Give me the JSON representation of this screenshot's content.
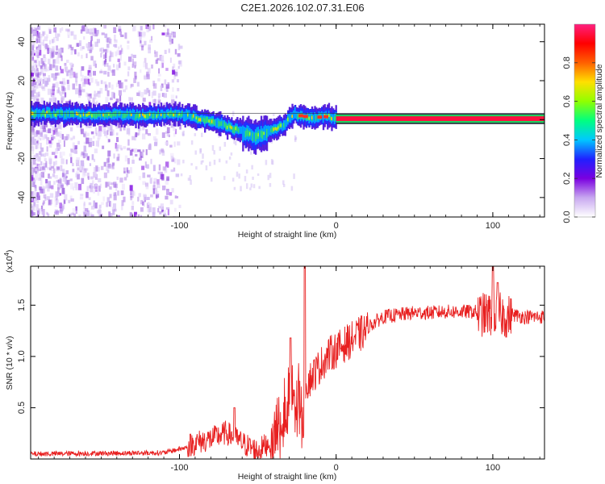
{
  "title": "C2E1.2026.102.07.31.E06",
  "chart_data": [
    {
      "type": "heatmap",
      "name": "spectrogram",
      "xlabel": "Height of straight line (km)",
      "ylabel": "Frequency (Hz)",
      "xlim": [
        -195,
        133
      ],
      "ylim": [
        -50,
        49
      ],
      "xticks": [
        -100,
        0,
        100
      ],
      "xtick_labels": [
        "-100",
        "0",
        "100"
      ],
      "yticks": [
        -40,
        -20,
        0,
        20,
        40
      ],
      "ytick_labels": [
        "-40",
        "-20",
        "0",
        "20",
        "40"
      ],
      "colorbar": {
        "label": "Normalized spectral amplitude",
        "range": [
          0,
          1
        ],
        "ticks": [
          0.0,
          0.2,
          0.4,
          0.6,
          0.8
        ],
        "tick_labels": [
          "0.0",
          "0.2",
          "0.4",
          "0.6",
          "0.8"
        ],
        "stops": [
          "#ffffff",
          "#c8a8f0",
          "#7a00e0",
          "#2020ff",
          "#00c8ff",
          "#00ff80",
          "#90ff00",
          "#ffe000",
          "#ff6000",
          "#ff0000",
          "#ff2080"
        ]
      },
      "ridge": {
        "x": [
          -195,
          -180,
          -160,
          -140,
          -120,
          -105,
          -95,
          -85,
          -75,
          -65,
          -58,
          -52,
          -46,
          -40,
          -34,
          -30,
          -27,
          -24,
          -20,
          -15,
          -10,
          -5,
          0,
          20,
          60,
          100,
          133
        ],
        "y": [
          3,
          3,
          2.5,
          2.5,
          2,
          3,
          2,
          0,
          -2,
          -5,
          -7,
          -9,
          -7,
          -5,
          -3,
          1,
          3,
          2,
          1.5,
          1,
          1.5,
          1.5,
          0.5,
          0.5,
          0.5,
          0.5,
          0.5
        ]
      }
    },
    {
      "type": "line",
      "name": "snr",
      "xlabel": "Height of straight line (km)",
      "ylabel": "SNR (10 * v/v)",
      "scale_note": "(x10^4)",
      "scale_base": "(x10",
      "scale_exp": "4",
      "scale_close": ")",
      "xlim": [
        -195,
        133
      ],
      "ylim": [
        0,
        1.88
      ],
      "xticks": [
        -100,
        0,
        100
      ],
      "xtick_labels": [
        "-100",
        "0",
        "100"
      ],
      "yticks": [
        0.5,
        1.0,
        1.5
      ],
      "ytick_labels": [
        "0.5",
        "1.0",
        "1.5"
      ],
      "color": "#e82020",
      "envelope": {
        "x": [
          -195,
          -110,
          -100,
          -90,
          -80,
          -70,
          -60,
          -50,
          -42,
          -40,
          -35,
          -30,
          -25,
          -22,
          -20,
          -15,
          -10,
          -5,
          0,
          5,
          10,
          15,
          20,
          25,
          30,
          40,
          50,
          60,
          70,
          80,
          90,
          95,
          100,
          105,
          110,
          120,
          133
        ],
        "y": [
          0.04,
          0.06,
          0.12,
          0.18,
          0.22,
          0.28,
          0.18,
          0.1,
          0.2,
          0.4,
          0.55,
          0.65,
          0.7,
          0.75,
          0.75,
          0.85,
          0.95,
          1.05,
          1.1,
          1.15,
          1.2,
          1.25,
          1.3,
          1.35,
          1.4,
          1.42,
          1.44,
          1.44,
          1.45,
          1.45,
          1.45,
          1.45,
          1.45,
          1.45,
          1.43,
          1.4,
          1.4
        ]
      },
      "spikes": [
        {
          "x": -20,
          "y": 1.88
        },
        {
          "x": -29,
          "y": 1.18
        },
        {
          "x": -65,
          "y": 0.5
        },
        {
          "x": 100,
          "y": 1.88
        },
        {
          "x": 103,
          "y": 1.72
        }
      ]
    }
  ]
}
